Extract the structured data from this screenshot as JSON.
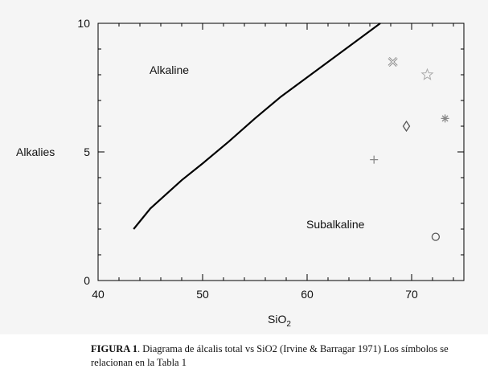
{
  "chart_data": {
    "type": "scatter",
    "xlim": [
      40,
      75
    ],
    "ylim": [
      0,
      10
    ],
    "x_ticks": [
      "40",
      "50",
      "60",
      "70"
    ],
    "y_ticks": [
      "0",
      "5",
      "10"
    ],
    "xlabel_main": "SiO",
    "xlabel_sub": "2",
    "ylabel": "Alkalies",
    "grid": false,
    "regions": [
      "Alkaline",
      "Subalkaline"
    ],
    "boundary_line": {
      "x": [
        43.4,
        45.0,
        48.0,
        50.0,
        52.5,
        55.0,
        57.5,
        60.0,
        62.5,
        65.0,
        67.0
      ],
      "y": [
        2.0,
        2.8,
        3.9,
        4.55,
        5.4,
        6.3,
        7.15,
        7.9,
        8.65,
        9.4,
        10.0
      ]
    },
    "points": [
      {
        "marker": "x-cross",
        "x": 68.2,
        "y": 8.5,
        "color": "#888888"
      },
      {
        "marker": "star",
        "x": 71.5,
        "y": 8.0,
        "color": "#aaaaaa"
      },
      {
        "marker": "diamond",
        "x": 69.5,
        "y": 6.0,
        "color": "#555555"
      },
      {
        "marker": "asterisk",
        "x": 73.2,
        "y": 6.3,
        "color": "#888888"
      },
      {
        "marker": "plus",
        "x": 66.4,
        "y": 4.7,
        "color": "#888888"
      },
      {
        "marker": "circle",
        "x": 72.3,
        "y": 1.7,
        "color": "#555555"
      }
    ]
  },
  "caption": {
    "label": "FIGURA 1",
    "text": ". Diagrama de álcalis total vs SiO2 (Irvine & Barragar 1971) Los símbolos se relacionan en la Tabla 1"
  }
}
